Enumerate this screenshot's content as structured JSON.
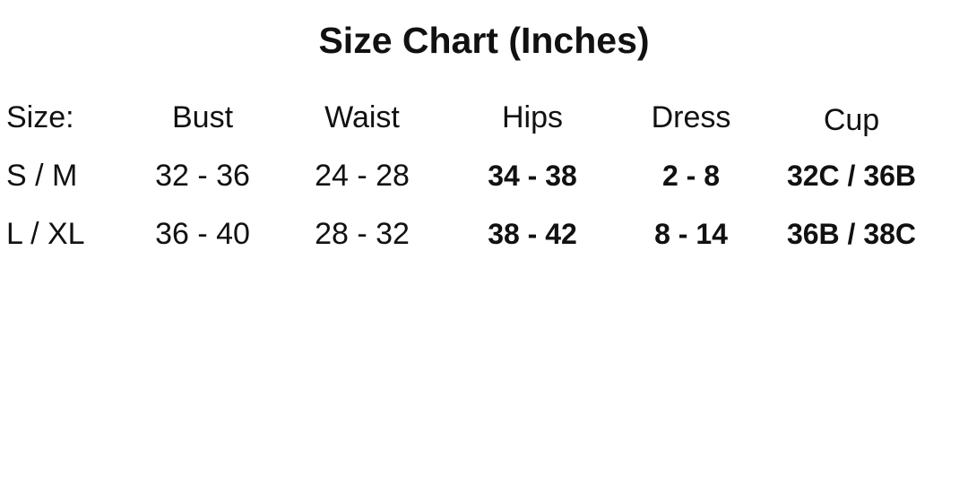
{
  "title": "Size Chart (Inches)",
  "table": {
    "headers": [
      "Size:",
      "Bust",
      "Waist",
      "Hips",
      "Dress",
      "Cup"
    ],
    "rows": [
      [
        "S / M",
        "32 - 36",
        "24 - 28",
        "34 - 38",
        "2 - 8",
        "32C / 36B"
      ],
      [
        "L / XL",
        "36 - 40",
        "28 - 32",
        "38 - 42",
        "8 - 14",
        "36B / 38C"
      ]
    ]
  }
}
